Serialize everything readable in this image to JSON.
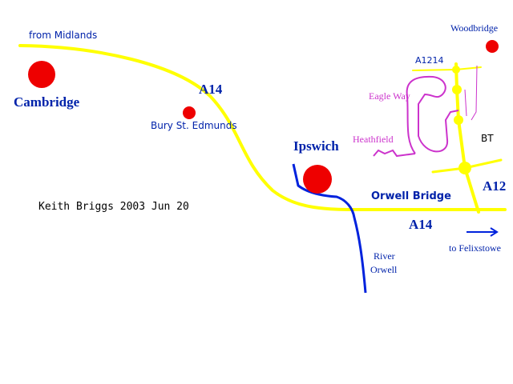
{
  "labels": {
    "from_midlands": "from Midlands",
    "cambridge": "Cambridge",
    "a14_west": "A14",
    "bury": "Bury St. Edmunds",
    "credit": "Keith Briggs 2003 Jun 20",
    "ipswich": "Ipswich",
    "orwell_bridge": "Orwell Bridge",
    "a14_east": "A14",
    "river_line1": "River",
    "river_line2": "Orwell",
    "felixstowe": "to Felixstowe",
    "a12": "A12",
    "bt": "BT",
    "heathfield": "Heathfield",
    "eagle_way": "Eagle Way",
    "a1214": "A1214",
    "woodbridge": "Woodbridge"
  }
}
